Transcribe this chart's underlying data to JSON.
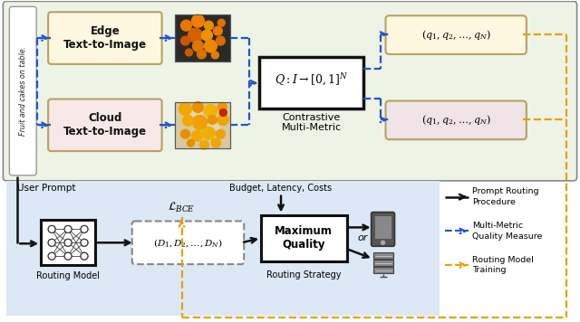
{
  "fig_width": 6.4,
  "fig_height": 3.56,
  "dpi": 100,
  "top_bg": "#edf4e6",
  "bottom_bg": "#dce8f5",
  "vertical_text": "Fruit and cakes on table.",
  "edge_box_label": "Edge\nText-to-Image",
  "cloud_box_label": "Cloud\nText-to-Image",
  "edge_box_color": "#fff8e1",
  "cloud_box_color": "#f9e8e8",
  "q_top_box_color": "#fff8e1",
  "q_bot_box_color": "#f0e4e8",
  "contrastive_label": "Contrastive\nMulti-Metric",
  "q_formula": "$Q\\!:\\!I \\rightarrow [0,1]^N$",
  "q_top_text": "$(q_1, q_2, \\ldots, q_N)$",
  "q_bot_text": "$(q_1, q_2, \\ldots, q_N)$",
  "routing_model_label": "Routing Model",
  "d_tuple_text": "$(D_1, D_2, \\ldots, D_N)$",
  "max_quality_label": "Maximum\nQuality",
  "routing_strategy_label": "Routing Strategy",
  "user_prompt_label": "User Prompt",
  "budget_label": "Budget, Latency, Costs",
  "lbce_label": "$\\mathcal{L}_{BCE}$",
  "legend_solid": "Prompt Routing\nProcedure",
  "legend_dashed_blue": "Multi-Metric\nQuality Measure",
  "legend_dashed_yellow": "Routing Model\nTraining",
  "arrow_blue": "#2255cc",
  "arrow_yellow": "#e8a000",
  "arrow_black": "#111111",
  "box_border_black": "#111111",
  "box_border_tan": "#b8a060",
  "top_border": "#888888"
}
